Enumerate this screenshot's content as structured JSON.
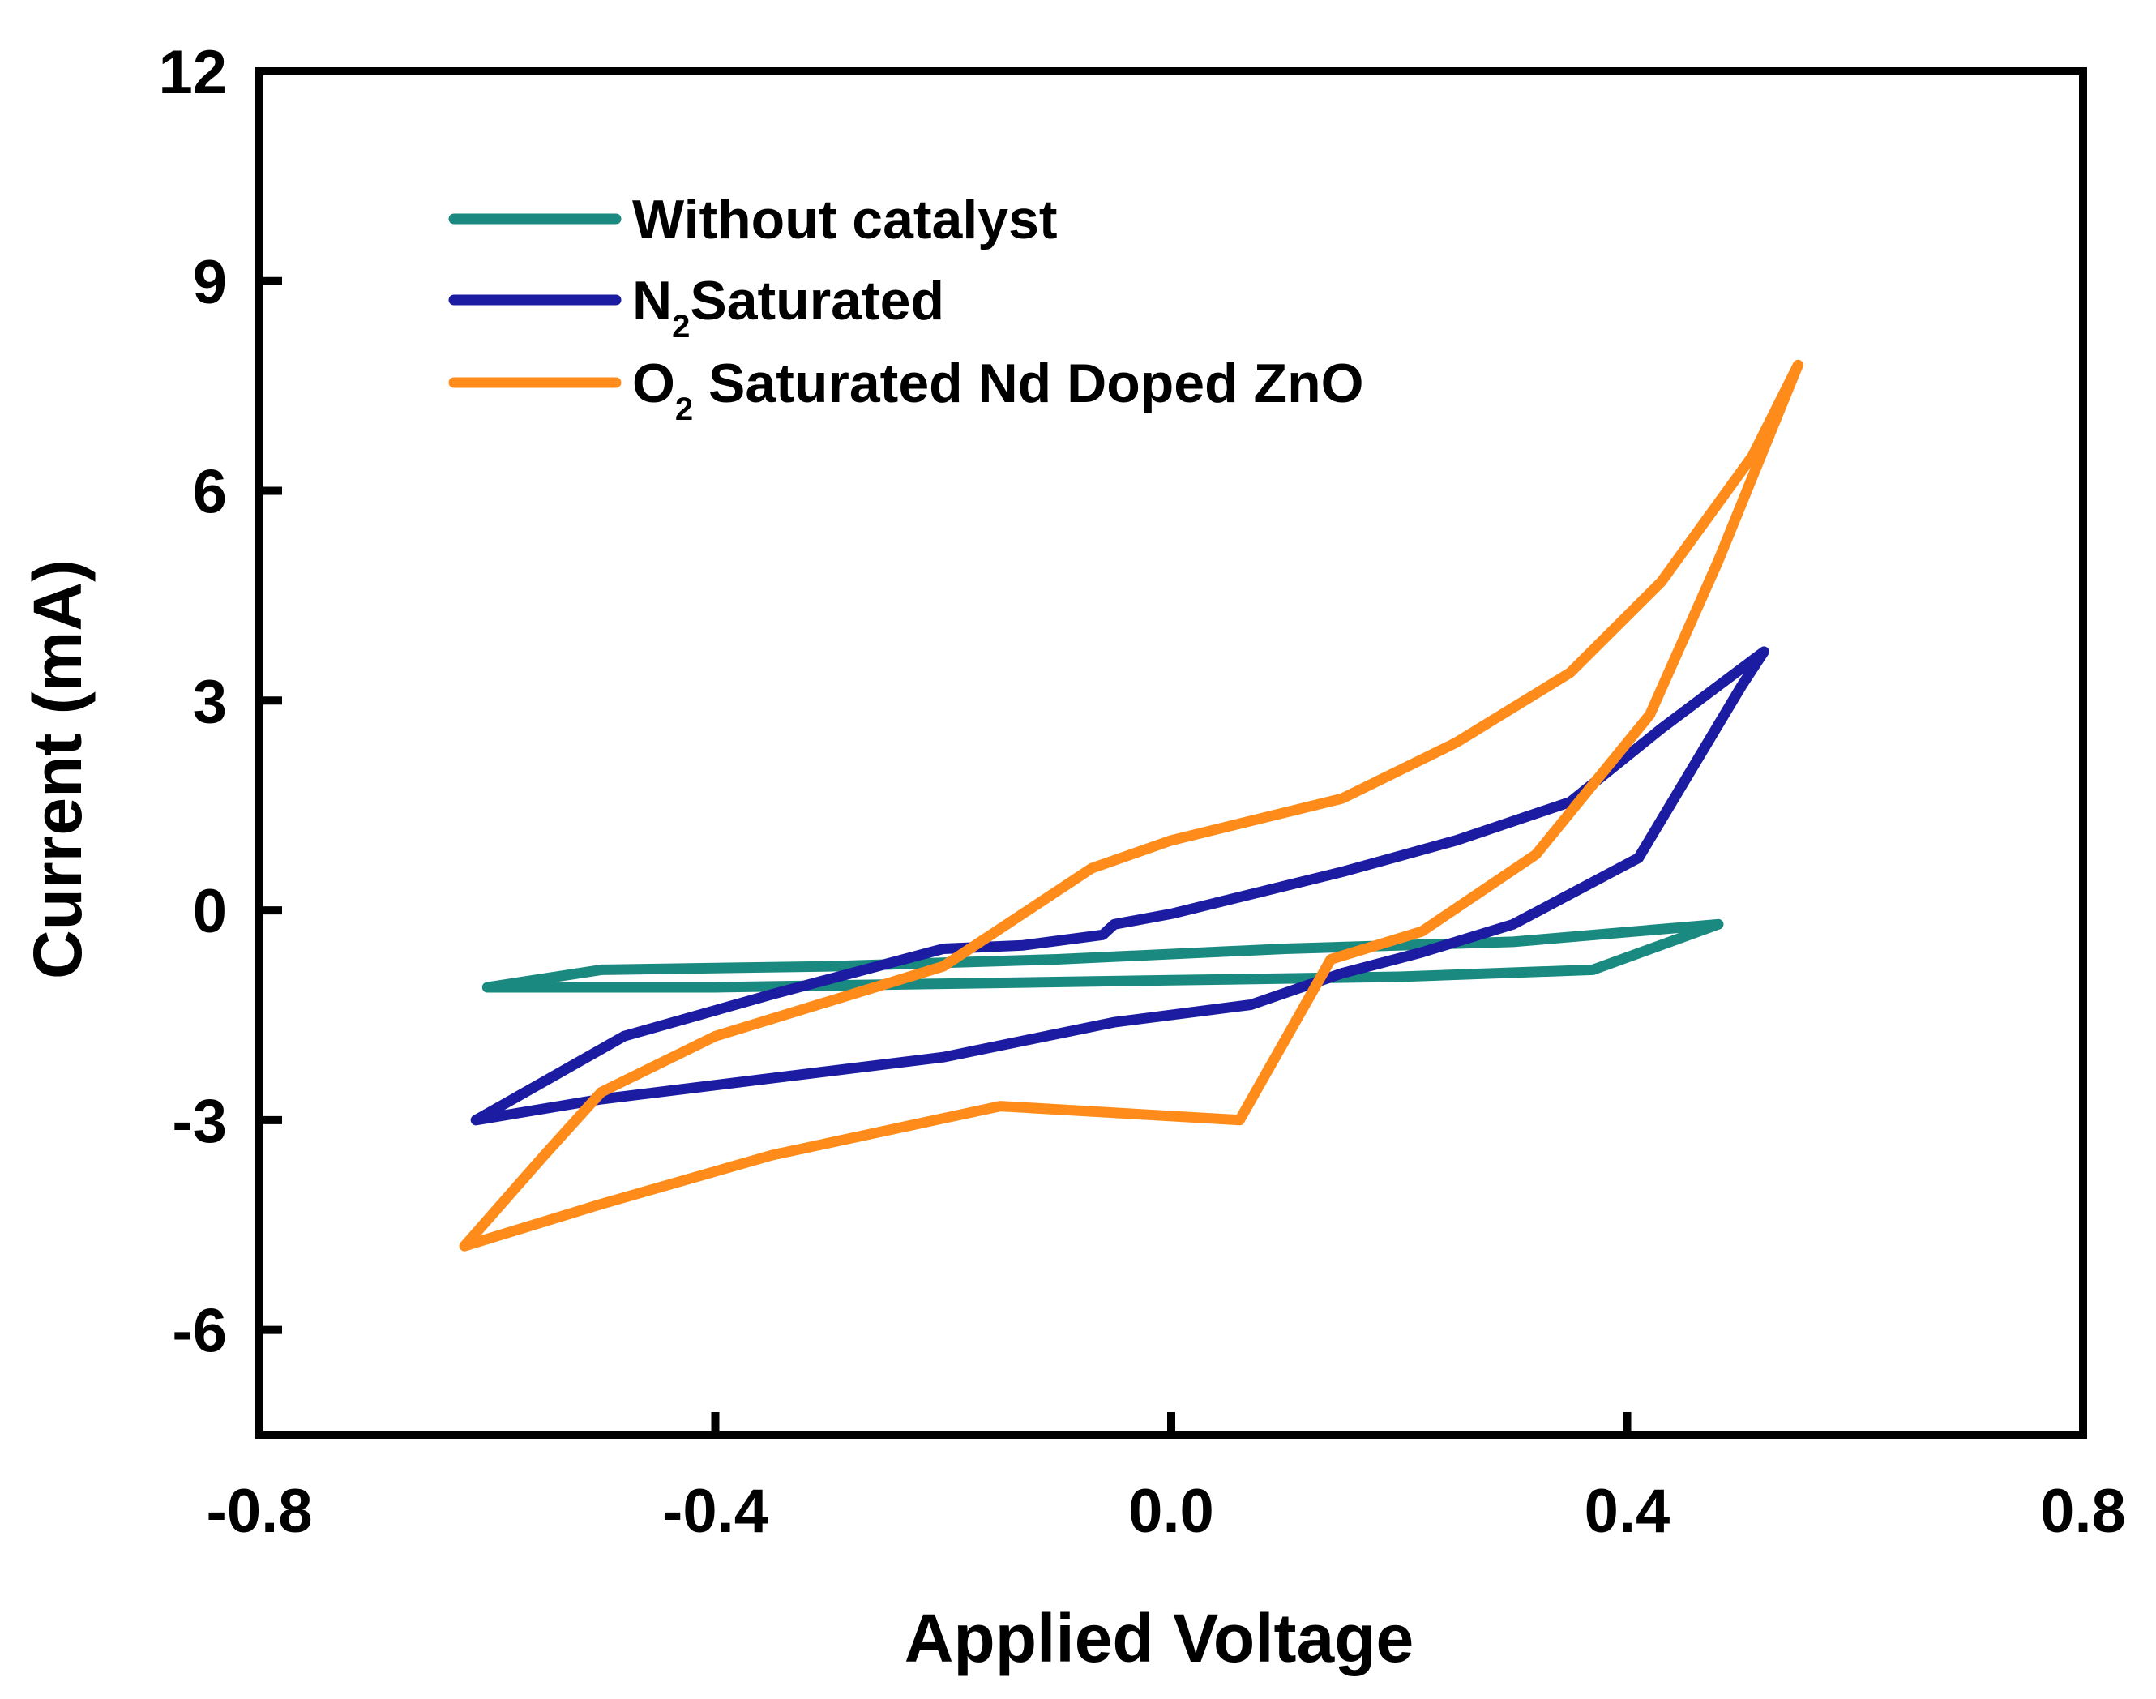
{
  "chart_data": {
    "type": "line",
    "title": "",
    "xlabel": "Applied Voltage",
    "ylabel": "Current (mA)",
    "xlim": [
      -0.8,
      0.8
    ],
    "ylim": [
      -7.5,
      12
    ],
    "xticks": [
      -0.8,
      -0.4,
      0.0,
      0.4,
      0.8
    ],
    "xtick_labels": [
      "-0.8",
      "-0.4",
      "0.0",
      "0.4",
      "0.8"
    ],
    "yticks": [
      12,
      9,
      6,
      3,
      0,
      -3,
      -6
    ],
    "ytick_labels": [
      "12",
      "9",
      "6",
      "3",
      "0",
      "-3",
      "-6"
    ],
    "grid": false,
    "legend_position": "top-left",
    "series": [
      {
        "name": "Without catalyst",
        "legend_main": "Without catalyst",
        "legend_sub": "",
        "legend_rest": "",
        "color": "#1a8a80",
        "x": [
          -0.6,
          -0.5,
          -0.3,
          -0.1,
          0.1,
          0.3,
          0.48,
          0.37,
          0.2,
          0.0,
          -0.2,
          -0.4,
          -0.6
        ],
        "y": [
          -1.1,
          -0.85,
          -0.8,
          -0.7,
          -0.55,
          -0.45,
          -0.2,
          -0.85,
          -0.95,
          -1.0,
          -1.05,
          -1.1,
          -1.1
        ]
      },
      {
        "name": "N2 Saturated",
        "legend_main": "N",
        "legend_sub": "2",
        "legend_rest": "Saturated",
        "color": "#1c1ca3",
        "x": [
          -0.61,
          -0.48,
          -0.35,
          -0.2,
          -0.13,
          -0.06,
          -0.05,
          0.0,
          0.15,
          0.25,
          0.35,
          0.43,
          0.52,
          0.5,
          0.41,
          0.3,
          0.22,
          0.15,
          0.07,
          -0.05,
          -0.2,
          -0.35,
          -0.5,
          -0.61
        ],
        "y": [
          -3.0,
          -1.8,
          -1.2,
          -0.55,
          -0.5,
          -0.35,
          -0.2,
          -0.05,
          0.55,
          1.0,
          1.55,
          2.6,
          3.7,
          3.2,
          0.75,
          -0.2,
          -0.6,
          -0.9,
          -1.35,
          -1.6,
          -2.1,
          -2.4,
          -2.7,
          -3.0
        ]
      },
      {
        "name": "O2 Saturated Nd Doped ZnO",
        "legend_main": "O",
        "legend_sub": "2",
        "legend_rest": " Saturated Nd Doped ZnO",
        "color": "#ff8c1a",
        "x": [
          -0.62,
          -0.55,
          -0.5,
          -0.4,
          -0.2,
          -0.07,
          0.0,
          0.15,
          0.25,
          0.35,
          0.43,
          0.51,
          0.55,
          0.48,
          0.42,
          0.32,
          0.22,
          0.14,
          0.06,
          -0.15,
          -0.35,
          -0.5,
          -0.62
        ],
        "y": [
          -4.8,
          -3.5,
          -2.6,
          -1.8,
          -0.8,
          0.6,
          1.0,
          1.6,
          2.4,
          3.4,
          4.7,
          6.5,
          7.8,
          5.0,
          2.8,
          0.8,
          -0.3,
          -0.7,
          -3.0,
          -2.8,
          -3.5,
          -4.2,
          -4.8
        ]
      }
    ]
  }
}
